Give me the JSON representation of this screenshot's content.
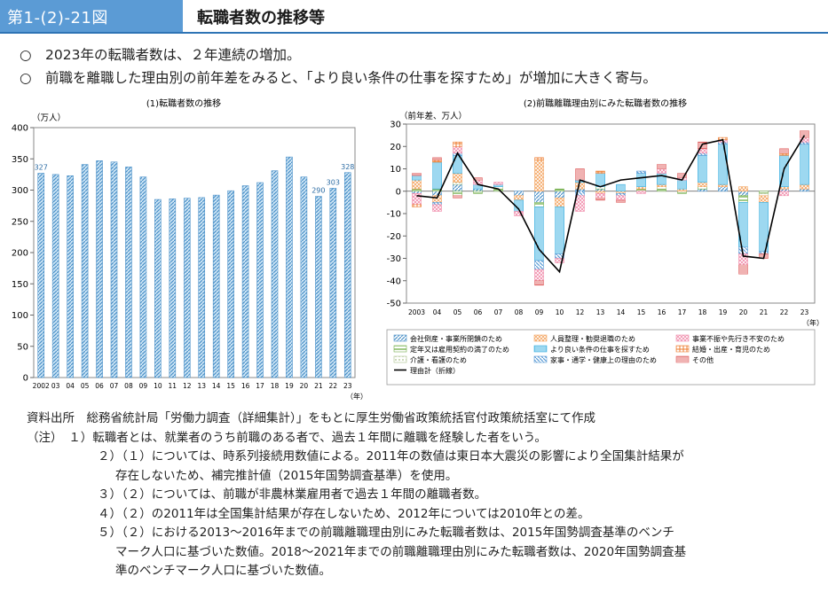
{
  "header": {
    "figure_number": "第1-(2)-21図",
    "title": "転職者数の推移等"
  },
  "bullets": [
    "○　2023年の転職者数は、２年連続の増加。",
    "○　前職を離職した理由別の前年差をみると、「より良い条件の仕事を探すため」が増加に大きく寄与。"
  ],
  "chart_data": [
    {
      "type": "bar",
      "title": "(1)転職者数の推移",
      "ylabel": "（万人）",
      "xlabel": "（年）",
      "ylim": [
        0,
        400
      ],
      "yticks": [
        0,
        50,
        100,
        150,
        200,
        250,
        300,
        350,
        400
      ],
      "categories": [
        "2002",
        "03",
        "04",
        "05",
        "06",
        "07",
        "08",
        "09",
        "10",
        "11",
        "12",
        "13",
        "14",
        "15",
        "16",
        "17",
        "18",
        "19",
        "20",
        "21",
        "22",
        "23"
      ],
      "values": [
        327,
        325,
        323,
        341,
        347,
        345,
        337,
        321,
        285,
        286,
        287,
        288,
        292,
        299,
        307,
        312,
        331,
        353,
        321,
        290,
        303,
        328
      ],
      "data_labels": {
        "2002": "327",
        "21": "290",
        "22": "303",
        "23": "328"
      }
    },
    {
      "type": "bar",
      "stacked": true,
      "title": "(2)前職離職理由別にみた転職者数の推移",
      "ylabel": "（前年差、万人）",
      "xlabel": "（年）",
      "ylim": [
        -50,
        30
      ],
      "yticks": [
        -50,
        -40,
        -30,
        -20,
        -10,
        0,
        10,
        20,
        30
      ],
      "categories": [
        "2003",
        "04",
        "05",
        "06",
        "07",
        "08",
        "09",
        "10",
        "12",
        "13",
        "14",
        "15",
        "16",
        "17",
        "18",
        "19",
        "20",
        "21",
        "22",
        "23"
      ],
      "series": [
        {
          "name": "会社倒産・事業所閉鎖のため",
          "color": "#4f93c9",
          "values": [
            -1,
            -2,
            3,
            1,
            0,
            -2,
            -5,
            -3,
            1,
            1,
            0,
            0,
            0,
            0,
            1,
            2,
            -2,
            0,
            1,
            1
          ]
        },
        {
          "name": "定年又は雇用契約の満了のため",
          "color": "#70ad47",
          "values": [
            1,
            1,
            -2,
            -1,
            1,
            0,
            -2,
            1,
            0,
            1,
            0,
            1,
            1,
            -1,
            1,
            0,
            -3,
            -1,
            0,
            0
          ]
        },
        {
          "name": "介護・看護のため",
          "color": "#a9c08b",
          "values": [
            0,
            0,
            1,
            0,
            1,
            0,
            0,
            0,
            0,
            0,
            0,
            0,
            1,
            0,
            0,
            0,
            0,
            -1,
            0,
            0
          ]
        },
        {
          "name": "人員整理・勧奨退職のため",
          "color": "#f4a460",
          "values": [
            4,
            -3,
            4,
            0,
            0,
            -2,
            14,
            -4,
            3,
            -1,
            -1,
            1,
            1,
            1,
            2,
            1,
            2,
            -3,
            1,
            2
          ]
        },
        {
          "name": "より良い条件の仕事を探すため",
          "color": "#3bb0e0",
          "values": [
            2,
            12,
            8,
            2,
            1,
            -5,
            -24,
            -21,
            1,
            6,
            3,
            6,
            5,
            4,
            12,
            18,
            -20,
            -22,
            14,
            18
          ]
        },
        {
          "name": "家事・通学・健康上の理由のため",
          "color": "#5b9bd5",
          "values": [
            0,
            -1,
            1,
            0,
            0,
            0,
            -4,
            -2,
            -2,
            0,
            -1,
            1,
            0,
            0,
            1,
            1,
            -3,
            -1,
            0,
            1
          ]
        },
        {
          "name": "事業不振や先行き不安のため",
          "color": "#f18cab",
          "values": [
            -5,
            -3,
            3,
            2,
            1,
            -2,
            -5,
            -2,
            -7,
            -2,
            -2,
            -1,
            2,
            1,
            2,
            1,
            -5,
            0,
            -2,
            2
          ]
        },
        {
          "name": "結婚・出産・育児のため",
          "color": "#ed7d31",
          "values": [
            -1,
            1,
            2,
            0,
            0,
            0,
            1,
            0,
            0,
            1,
            0,
            0,
            0,
            0,
            0,
            1,
            0,
            0,
            1,
            0
          ]
        },
        {
          "name": "その他",
          "color": "#e06666",
          "values": [
            1,
            1,
            -1,
            1,
            0,
            0,
            -2,
            0,
            5,
            -1,
            -1,
            0,
            2,
            2,
            3,
            0,
            -4,
            -2,
            2,
            3
          ]
        }
      ],
      "line": {
        "name": "理由計（折線）",
        "color": "#000000",
        "values": [
          -2,
          -3,
          17,
          3,
          1,
          -8,
          -26,
          -36,
          5,
          2,
          5,
          6,
          7,
          5,
          21,
          23,
          -29,
          -30,
          10,
          25
        ]
      }
    }
  ],
  "notes": [
    "資料出所　総務省統計局「労働力調査（詳細集計）」をもとに厚生労働省政策統括官付政策統括室にて作成",
    "（注）　１）転職者とは、就業者のうち前職のある者で、過去１年間に離職を経験した者をいう。",
    "２）（１）については、時系列接続用数値による。2011年の数値は東日本大震災の影響により全国集計結果が",
    "存在しないため、補完推計値（2015年国勢調査基準）を使用。",
    "３）（２）については、前職が非農林業雇用者で過去１年間の離職者数。",
    "４）（２）の2011年は全国集計結果が存在しないため、2012年については2010年との差。",
    "５）（２）における2013～2016年までの前職離職理由別にみた転職者数は、2015年国勢調査基準のベンチ",
    "マーク人口に基づいた数値。2018～2021年までの前職離職理由別にみた転職者数は、2020年国勢調査基",
    "準のベンチマーク人口に基づいた数値。"
  ]
}
